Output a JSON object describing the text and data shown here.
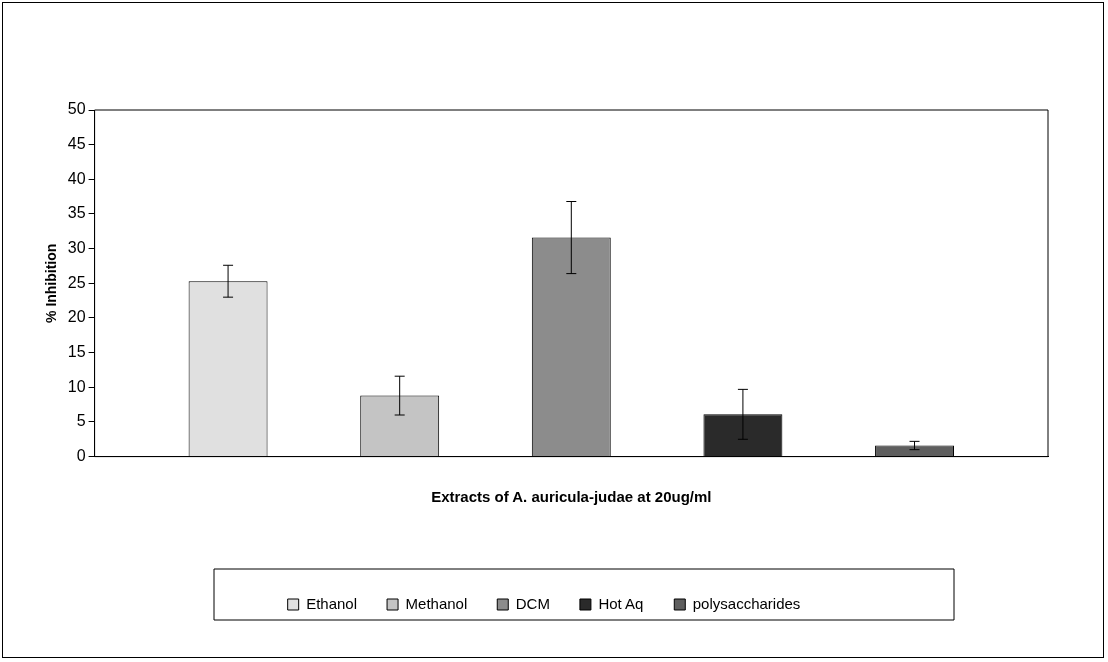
{
  "chart_data": {
    "type": "bar",
    "xlabel": "Extracts of A. auricula-judae at 20ug/ml",
    "ylabel": "% Inhibition",
    "categories": [
      null
    ],
    "series": [
      {
        "name": "Ethanol",
        "color": "#e0e0e0",
        "values": [
          25.3
        ],
        "errors": [
          2.3
        ]
      },
      {
        "name": "Methanol",
        "color": "#c4c4c4",
        "values": [
          8.8
        ],
        "errors": [
          2.8
        ]
      },
      {
        "name": "DCM",
        "color": "#8c8c8c",
        "values": [
          31.6
        ],
        "errors": [
          5.2
        ]
      },
      {
        "name": "Hot Aq",
        "color": "#2a2a2a",
        "values": [
          6.1
        ],
        "errors": [
          3.6
        ]
      },
      {
        "name": "polysaccharides",
        "color": "#5e5e5e",
        "values": [
          1.6
        ],
        "errors": [
          0.6
        ]
      }
    ],
    "ylim": [
      0,
      50
    ],
    "yticks": [
      0,
      5,
      10,
      15,
      20,
      25,
      30,
      35,
      40,
      45,
      50
    ],
    "grid": false,
    "legend": "bottom"
  }
}
